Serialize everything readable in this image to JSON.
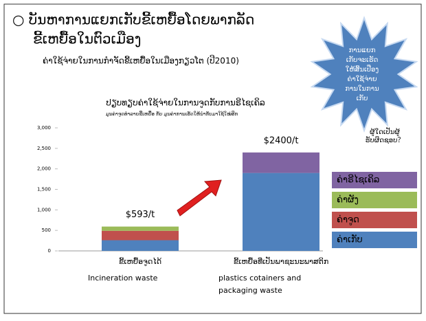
{
  "slide": {
    "title_lines": [
      "○ ບັນຫາການແຍກເກັບຂີ້ເຫຍື້ອໂດຍພາກລັດ",
      "ຂີ້ເຫຍື້ອໃນຕົວເມືອງ"
    ],
    "subtitle": "ຄ່າໃຊ້ຈ່າຍໃນການກຳຈັດຂີ້ເຫຍື້ອໃນເມືອງກຽວໂຕ (ປີ2010)",
    "callout_lines": [
      "ການແຍກ",
      "ເກັບຈະເຮັດ",
      "ໃຫ້ສິ້ນເປືອງ",
      "ຄ່າໃຊ້ຈ່າຍ",
      "ການໃນການ",
      "ເກັບ"
    ],
    "question_lines": [
      "ຜູ້ໃດເປັນຜູ້",
      "ຮັບຜິດຊອບ？"
    ],
    "english_labels": [
      "Incineration   waste",
      "plastics cotainers and",
      "packaging waste"
    ]
  },
  "chart_data": {
    "type": "stacked_bar",
    "title": "ປຽບທຽບຄ່າໃຊ້ຈ່າຍໃນການຈູດກັບການຣີໄຊເຄິລ",
    "subtitle": "ມູນຄ່າຈູດທຳລາຍຂີ້ເຫຍື້ອ ກັບ ມູນຄ່າການເຮັດໃຫ້ນຳກັບມາໃຊ້ໃໝ່ອີກ",
    "categories": [
      "ຂີ້ເຫຍື້ອຈູດໄດ້",
      "ຂີ້ເຫຍື້ອທີ່ເປັນພາຊະນະພາສຕິກ"
    ],
    "series": [
      {
        "name": "ຄ່າເກັບ",
        "color": "#4f81bd",
        "values": [
          260,
          1900
        ]
      },
      {
        "name": "ຄ່າຈູດ",
        "color": "#c0504d",
        "values": [
          230,
          null
        ]
      },
      {
        "name": "ຄ່າຜັງ",
        "color": "#9bbb59",
        "values": [
          103,
          null
        ]
      },
      {
        "name": "ຄ່າຣີໄຊເຄິລ",
        "color": "#8064a2",
        "values": [
          null,
          500
        ]
      }
    ],
    "totals": [
      593,
      2400
    ],
    "total_labels": [
      "$593/t",
      "$2400/t"
    ],
    "ylim": [
      0,
      3000
    ],
    "yticks": [
      0,
      500,
      {
        "value": 1000,
        "label": "1,000"
      },
      {
        "value": 1500,
        "label": "1,500"
      },
      {
        "value": 2000,
        "label": "2,000"
      },
      {
        "value": 2500,
        "label": "2,500"
      },
      {
        "value": 3000,
        "label": "3,000"
      }
    ],
    "grid": false
  }
}
